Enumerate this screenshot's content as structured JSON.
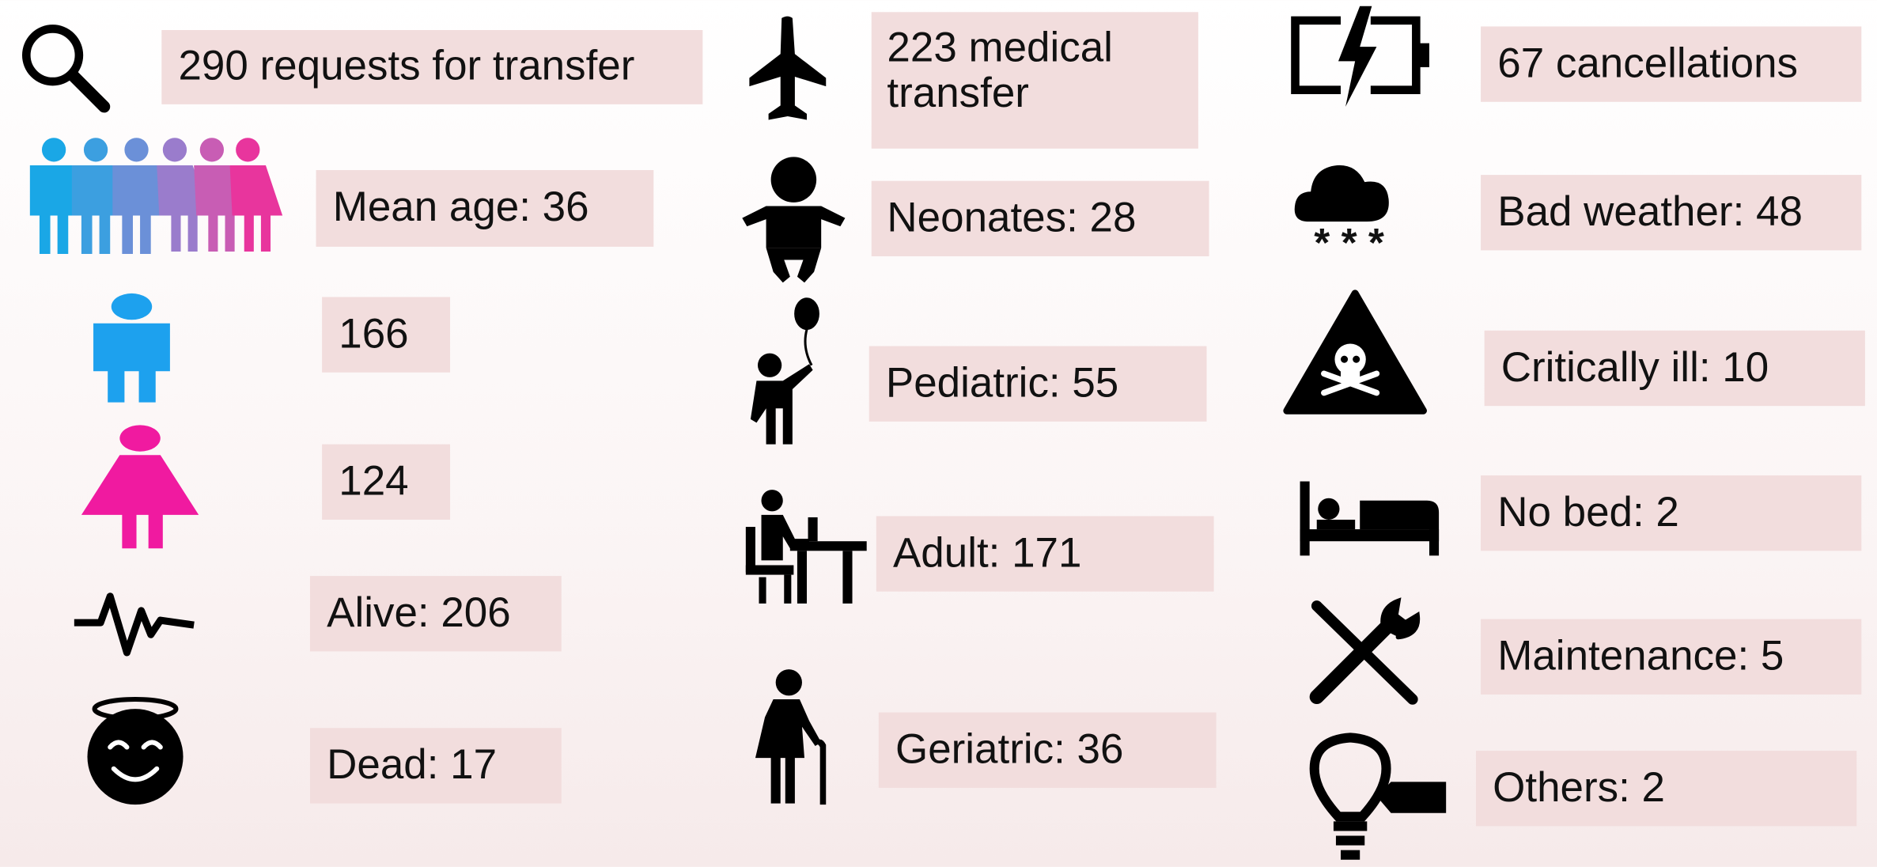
{
  "columns": [
    [
      {
        "text": "290 requests for transfer"
      },
      {
        "text": "Mean age: 36"
      },
      {
        "text": "166"
      },
      {
        "text": "124"
      },
      {
        "text": "Alive: 206"
      },
      {
        "text": "Dead: 17"
      }
    ],
    [
      {
        "lines": [
          "223 medical",
          "transfer"
        ]
      },
      {
        "text": "Neonates: 28"
      },
      {
        "text": "Pediatric: 55"
      },
      {
        "text": "Adult: 171"
      },
      {
        "text": "Geriatric: 36"
      }
    ],
    [
      {
        "text": "67 cancellations"
      },
      {
        "text": "Bad weather: 48"
      },
      {
        "text": "Critically ill: 10"
      },
      {
        "text": "No bed: 2"
      },
      {
        "text": "Maintenance: 5"
      },
      {
        "text": "Others: 2"
      }
    ]
  ]
}
